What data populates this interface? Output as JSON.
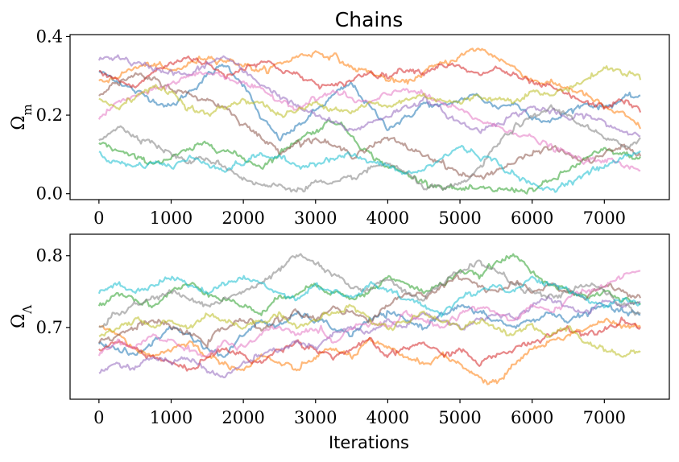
{
  "chart_data": {
    "type": "line",
    "title": "Chains",
    "xlabel": "Iterations",
    "panels": [
      {
        "ylabel_symbol": "Ω",
        "ylabel_subscript": "m",
        "xlim": [
          -400,
          7900
        ],
        "ylim": [
          -0.015,
          0.405
        ],
        "xticks": [
          0,
          1000,
          2000,
          3000,
          4000,
          5000,
          6000,
          7000
        ],
        "yticks": [
          0.0,
          0.2,
          0.4
        ],
        "ytick_labels": [
          "0.0",
          "0.2",
          "0.4"
        ],
        "series": [
          {
            "color": "#1f77b4",
            "values": [
              0.31,
              0.29,
              0.26,
              0.24,
              0.22,
              0.26,
              0.3,
              0.33,
              0.28,
              0.19,
              0.14,
              0.17,
              0.21,
              0.25,
              0.28,
              0.22,
              0.17,
              0.19,
              0.23,
              0.22,
              0.24,
              0.25,
              0.22,
              0.23,
              0.2,
              0.18,
              0.21,
              0.23,
              0.22,
              0.24,
              0.25
            ]
          },
          {
            "color": "#ff7f0e",
            "values": [
              0.28,
              0.3,
              0.32,
              0.33,
              0.31,
              0.33,
              0.35,
              0.34,
              0.33,
              0.31,
              0.33,
              0.35,
              0.36,
              0.35,
              0.32,
              0.31,
              0.29,
              0.28,
              0.31,
              0.33,
              0.35,
              0.37,
              0.35,
              0.32,
              0.29,
              0.28,
              0.27,
              0.25,
              0.22,
              0.2,
              0.17
            ]
          },
          {
            "color": "#2ca02c",
            "values": [
              0.13,
              0.11,
              0.09,
              0.08,
              0.09,
              0.11,
              0.13,
              0.11,
              0.09,
              0.07,
              0.1,
              0.14,
              0.16,
              0.19,
              0.15,
              0.1,
              0.07,
              0.05,
              0.03,
              0.02,
              0.01,
              0.01,
              0.01,
              0.01,
              0.01,
              0.03,
              0.06,
              0.09,
              0.11,
              0.1,
              0.09
            ]
          },
          {
            "color": "#d62728",
            "values": [
              0.31,
              0.29,
              0.27,
              0.31,
              0.33,
              0.35,
              0.33,
              0.3,
              0.32,
              0.34,
              0.32,
              0.3,
              0.28,
              0.27,
              0.29,
              0.31,
              0.3,
              0.32,
              0.31,
              0.33,
              0.32,
              0.3,
              0.32,
              0.3,
              0.28,
              0.27,
              0.25,
              0.23,
              0.22,
              0.24,
              0.21
            ]
          },
          {
            "color": "#9467bd",
            "values": [
              0.34,
              0.35,
              0.33,
              0.32,
              0.31,
              0.3,
              0.33,
              0.35,
              0.31,
              0.28,
              0.25,
              0.22,
              0.2,
              0.18,
              0.16,
              0.18,
              0.2,
              0.22,
              0.24,
              0.21,
              0.18,
              0.16,
              0.18,
              0.2,
              0.22,
              0.21,
              0.19,
              0.2,
              0.18,
              0.16,
              0.15
            ]
          },
          {
            "color": "#8c564b",
            "values": [
              0.26,
              0.28,
              0.3,
              0.29,
              0.27,
              0.25,
              0.24,
              0.22,
              0.18,
              0.14,
              0.11,
              0.13,
              0.14,
              0.12,
              0.1,
              0.12,
              0.14,
              0.12,
              0.1,
              0.08,
              0.05,
              0.04,
              0.06,
              0.08,
              0.1,
              0.12,
              0.1,
              0.08,
              0.1,
              0.12,
              0.1
            ]
          },
          {
            "color": "#e377c2",
            "values": [
              0.19,
              0.23,
              0.25,
              0.26,
              0.28,
              0.3,
              0.31,
              0.3,
              0.28,
              0.26,
              0.24,
              0.22,
              0.24,
              0.26,
              0.24,
              0.23,
              0.25,
              0.27,
              0.25,
              0.23,
              0.21,
              0.19,
              0.17,
              0.16,
              0.14,
              0.12,
              0.1,
              0.08,
              0.09,
              0.07,
              0.06
            ]
          },
          {
            "color": "#7f7f7f",
            "values": [
              0.14,
              0.17,
              0.15,
              0.13,
              0.1,
              0.08,
              0.09,
              0.07,
              0.04,
              0.02,
              0.02,
              0.01,
              0.03,
              0.02,
              0.04,
              0.06,
              0.08,
              0.05,
              0.02,
              0.01,
              0.02,
              0.06,
              0.12,
              0.17,
              0.19,
              0.22,
              0.2,
              0.17,
              0.14,
              0.12,
              0.14
            ]
          },
          {
            "color": "#bcbd22",
            "values": [
              0.24,
              0.22,
              0.25,
              0.27,
              0.26,
              0.22,
              0.2,
              0.22,
              0.24,
              0.23,
              0.2,
              0.21,
              0.23,
              0.22,
              0.21,
              0.23,
              0.22,
              0.24,
              0.25,
              0.24,
              0.23,
              0.25,
              0.24,
              0.24,
              0.26,
              0.25,
              0.27,
              0.29,
              0.32,
              0.31,
              0.3
            ]
          },
          {
            "color": "#17becf",
            "values": [
              0.1,
              0.08,
              0.07,
              0.08,
              0.07,
              0.09,
              0.08,
              0.06,
              0.08,
              0.1,
              0.09,
              0.07,
              0.08,
              0.09,
              0.1,
              0.08,
              0.07,
              0.05,
              0.06,
              0.09,
              0.12,
              0.1,
              0.08,
              0.05,
              0.02,
              0.01,
              0.03,
              0.05,
              0.07,
              0.09,
              0.11
            ]
          }
        ]
      },
      {
        "ylabel_symbol": "Ω",
        "ylabel_subscript": "Λ",
        "xlim": [
          -400,
          7900
        ],
        "ylim": [
          0.6,
          0.83
        ],
        "xticks": [
          0,
          1000,
          2000,
          3000,
          4000,
          5000,
          6000,
          7000
        ],
        "yticks": [
          0.7,
          0.8
        ],
        "ytick_labels": [
          "0.7",
          "0.8"
        ],
        "series": [
          {
            "color": "#1f77b4",
            "values": [
              0.68,
              0.67,
              0.66,
              0.68,
              0.7,
              0.69,
              0.67,
              0.66,
              0.69,
              0.71,
              0.7,
              0.72,
              0.71,
              0.7,
              0.69,
              0.71,
              0.72,
              0.71,
              0.7,
              0.72,
              0.73,
              0.72,
              0.71,
              0.7,
              0.71,
              0.72,
              0.71,
              0.72,
              0.73,
              0.72,
              0.72
            ]
          },
          {
            "color": "#ff7f0e",
            "values": [
              0.7,
              0.69,
              0.67,
              0.66,
              0.67,
              0.68,
              0.66,
              0.65,
              0.64,
              0.66,
              0.65,
              0.64,
              0.66,
              0.67,
              0.66,
              0.68,
              0.67,
              0.66,
              0.65,
              0.66,
              0.65,
              0.63,
              0.62,
              0.65,
              0.67,
              0.68,
              0.69,
              0.7,
              0.71,
              0.7,
              0.7
            ]
          },
          {
            "color": "#2ca02c",
            "values": [
              0.73,
              0.75,
              0.74,
              0.73,
              0.75,
              0.76,
              0.75,
              0.74,
              0.73,
              0.72,
              0.74,
              0.75,
              0.76,
              0.75,
              0.74,
              0.75,
              0.77,
              0.76,
              0.75,
              0.76,
              0.78,
              0.77,
              0.79,
              0.8,
              0.78,
              0.76,
              0.75,
              0.74,
              0.75,
              0.74,
              0.73
            ]
          },
          {
            "color": "#d62728",
            "values": [
              0.67,
              0.68,
              0.67,
              0.66,
              0.65,
              0.64,
              0.66,
              0.67,
              0.66,
              0.65,
              0.67,
              0.68,
              0.67,
              0.66,
              0.67,
              0.68,
              0.66,
              0.67,
              0.68,
              0.66,
              0.67,
              0.65,
              0.66,
              0.67,
              0.68,
              0.69,
              0.7,
              0.69,
              0.7,
              0.71,
              0.7
            ]
          },
          {
            "color": "#9467bd",
            "values": [
              0.64,
              0.65,
              0.64,
              0.66,
              0.65,
              0.66,
              0.64,
              0.63,
              0.65,
              0.66,
              0.67,
              0.68,
              0.67,
              0.69,
              0.7,
              0.69,
              0.71,
              0.7,
              0.72,
              0.71,
              0.7,
              0.71,
              0.72,
              0.71,
              0.73,
              0.74,
              0.73,
              0.72,
              0.74,
              0.73,
              0.74
            ]
          },
          {
            "color": "#8c564b",
            "values": [
              0.68,
              0.69,
              0.7,
              0.71,
              0.7,
              0.69,
              0.68,
              0.7,
              0.71,
              0.7,
              0.71,
              0.72,
              0.71,
              0.73,
              0.72,
              0.71,
              0.73,
              0.75,
              0.74,
              0.76,
              0.77,
              0.76,
              0.75,
              0.76,
              0.75,
              0.76,
              0.75,
              0.74,
              0.76,
              0.75,
              0.74
            ]
          },
          {
            "color": "#e377c2",
            "values": [
              0.66,
              0.68,
              0.67,
              0.69,
              0.68,
              0.67,
              0.66,
              0.68,
              0.67,
              0.69,
              0.7,
              0.69,
              0.7,
              0.68,
              0.7,
              0.71,
              0.7,
              0.72,
              0.71,
              0.7,
              0.72,
              0.73,
              0.72,
              0.71,
              0.73,
              0.72,
              0.74,
              0.75,
              0.76,
              0.77,
              0.78
            ]
          },
          {
            "color": "#7f7f7f",
            "values": [
              0.7,
              0.72,
              0.73,
              0.74,
              0.75,
              0.74,
              0.73,
              0.74,
              0.75,
              0.76,
              0.78,
              0.8,
              0.79,
              0.77,
              0.76,
              0.75,
              0.77,
              0.75,
              0.74,
              0.76,
              0.78,
              0.79,
              0.78,
              0.76,
              0.75,
              0.74,
              0.75,
              0.76,
              0.75,
              0.73,
              0.72
            ]
          },
          {
            "color": "#bcbd22",
            "values": [
              0.69,
              0.7,
              0.71,
              0.7,
              0.71,
              0.7,
              0.72,
              0.71,
              0.7,
              0.71,
              0.72,
              0.7,
              0.71,
              0.72,
              0.73,
              0.71,
              0.7,
              0.71,
              0.72,
              0.71,
              0.7,
              0.71,
              0.7,
              0.69,
              0.7,
              0.69,
              0.7,
              0.68,
              0.67,
              0.66,
              0.67
            ]
          },
          {
            "color": "#17becf",
            "values": [
              0.75,
              0.76,
              0.75,
              0.76,
              0.77,
              0.76,
              0.75,
              0.76,
              0.77,
              0.76,
              0.75,
              0.74,
              0.76,
              0.75,
              0.74,
              0.76,
              0.75,
              0.74,
              0.73,
              0.72,
              0.74,
              0.75,
              0.76,
              0.75,
              0.77,
              0.76,
              0.75,
              0.74,
              0.73,
              0.74,
              0.73
            ]
          }
        ]
      }
    ]
  }
}
